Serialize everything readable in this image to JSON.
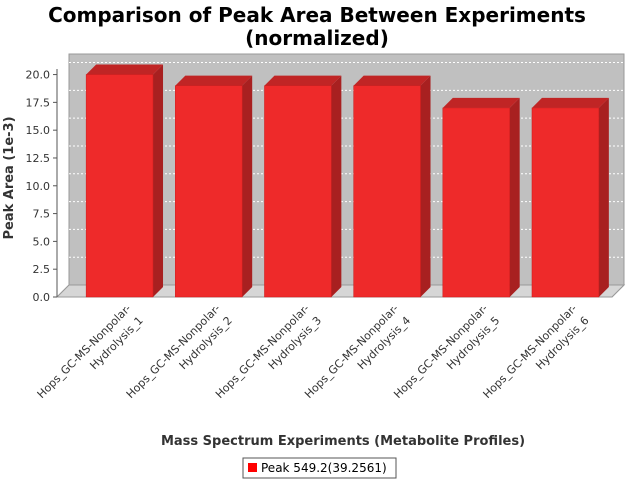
{
  "chart_data": {
    "type": "bar",
    "title_lines": [
      "Comparison of Peak Area Between Experiments",
      "(normalized)"
    ],
    "xlabel": "Mass Spectrum Experiments (Metabolite Profiles)",
    "ylabel": "Peak Area (1e-3)",
    "categories": [
      [
        "Hops_GC-MS-Nonpolar-",
        "Hydrolysis_1"
      ],
      [
        "Hops_GC-MS-Nonpolar-",
        "Hydrolysis_2"
      ],
      [
        "Hops_GC-MS-Nonpolar-",
        "Hydrolysis_3"
      ],
      [
        "Hops_GC-MS-Nonpolar-",
        "Hydrolysis_4"
      ],
      [
        "Hops_GC-MS-Nonpolar-",
        "Hydrolysis_5"
      ],
      [
        "Hops_GC-MS-Nonpolar-",
        "Hydrolysis_6"
      ]
    ],
    "series": [
      {
        "name": "Peak 549.2(39.2561)",
        "values": [
          20.0,
          19.0,
          19.0,
          19.0,
          17.0,
          17.0
        ],
        "color": "#ee2a2a"
      }
    ],
    "ylim": [
      0,
      20.5
    ],
    "yticks": [
      "0.0",
      "2.5",
      "5.0",
      "7.5",
      "10.0",
      "12.5",
      "15.0",
      "17.5",
      "20.0"
    ],
    "grid": true,
    "legend_position": "bottom-center",
    "plot_background": "#c0c0c0"
  }
}
